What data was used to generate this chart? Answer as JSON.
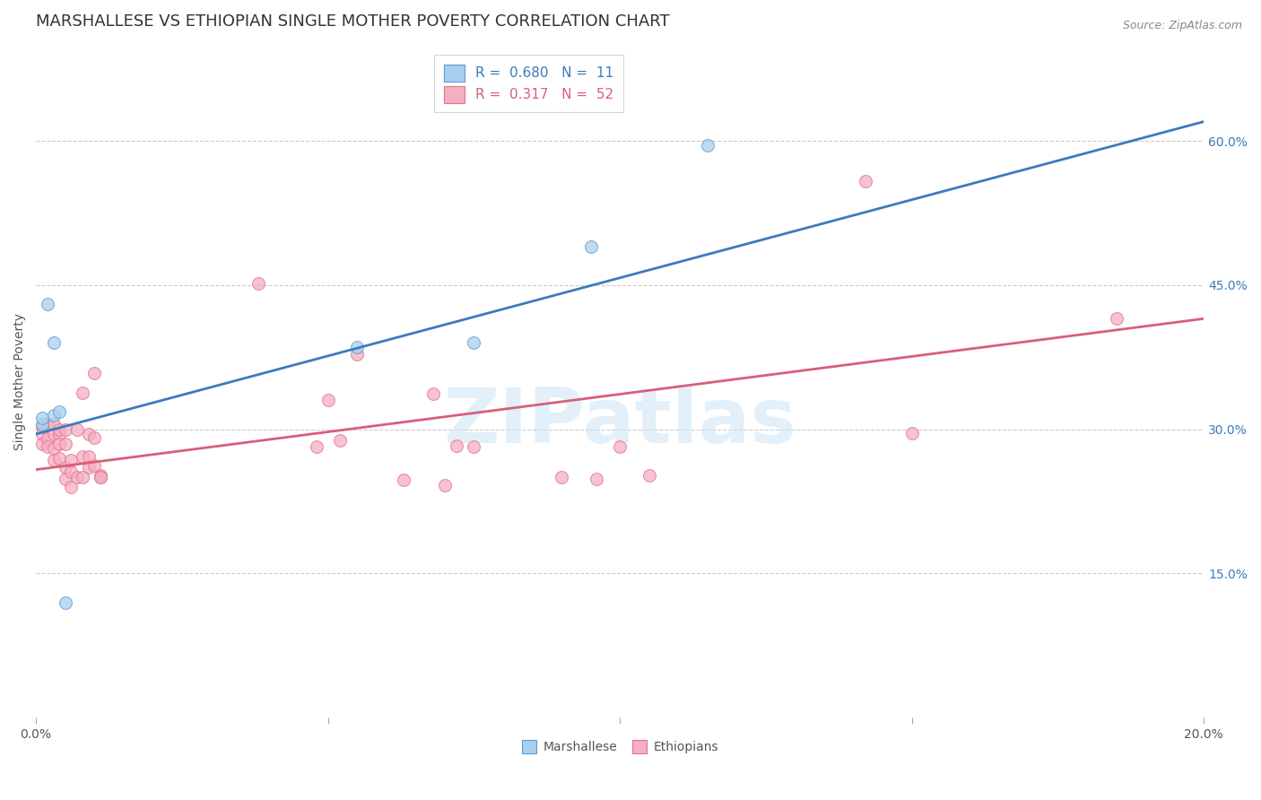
{
  "title": "MARSHALLESE VS ETHIOPIAN SINGLE MOTHER POVERTY CORRELATION CHART",
  "source": "Source: ZipAtlas.com",
  "ylabel": "Single Mother Poverty",
  "right_yticks": [
    "60.0%",
    "45.0%",
    "30.0%",
    "15.0%"
  ],
  "right_ytick_vals": [
    0.6,
    0.45,
    0.3,
    0.15
  ],
  "legend_blue_r": "0.680",
  "legend_blue_n": "11",
  "legend_pink_r": "0.317",
  "legend_pink_n": "52",
  "watermark": "ZIPatlas",
  "blue_color": "#a8d0ee",
  "pink_color": "#f4afc3",
  "blue_edge_color": "#5b9bd5",
  "pink_edge_color": "#e8728a",
  "blue_line_color": "#3c7abf",
  "pink_line_color": "#d95f79",
  "blue_scatter": [
    [
      0.001,
      0.305
    ],
    [
      0.001,
      0.312
    ],
    [
      0.002,
      0.43
    ],
    [
      0.003,
      0.39
    ],
    [
      0.003,
      0.315
    ],
    [
      0.004,
      0.318
    ],
    [
      0.005,
      0.12
    ],
    [
      0.055,
      0.385
    ],
    [
      0.075,
      0.39
    ],
    [
      0.095,
      0.49
    ],
    [
      0.115,
      0.595
    ]
  ],
  "pink_scatter": [
    [
      0.001,
      0.302
    ],
    [
      0.001,
      0.295
    ],
    [
      0.001,
      0.285
    ],
    [
      0.002,
      0.305
    ],
    [
      0.002,
      0.29
    ],
    [
      0.002,
      0.282
    ],
    [
      0.003,
      0.305
    ],
    [
      0.003,
      0.295
    ],
    [
      0.003,
      0.28
    ],
    [
      0.003,
      0.268
    ],
    [
      0.004,
      0.295
    ],
    [
      0.004,
      0.285
    ],
    [
      0.004,
      0.3
    ],
    [
      0.004,
      0.27
    ],
    [
      0.005,
      0.3
    ],
    [
      0.005,
      0.285
    ],
    [
      0.005,
      0.26
    ],
    [
      0.005,
      0.248
    ],
    [
      0.006,
      0.24
    ],
    [
      0.006,
      0.256
    ],
    [
      0.006,
      0.268
    ],
    [
      0.007,
      0.3
    ],
    [
      0.007,
      0.25
    ],
    [
      0.008,
      0.338
    ],
    [
      0.008,
      0.272
    ],
    [
      0.008,
      0.25
    ],
    [
      0.009,
      0.295
    ],
    [
      0.009,
      0.272
    ],
    [
      0.009,
      0.26
    ],
    [
      0.01,
      0.291
    ],
    [
      0.01,
      0.358
    ],
    [
      0.01,
      0.262
    ],
    [
      0.011,
      0.252
    ],
    [
      0.011,
      0.25
    ],
    [
      0.011,
      0.25
    ],
    [
      0.038,
      0.452
    ],
    [
      0.048,
      0.282
    ],
    [
      0.05,
      0.33
    ],
    [
      0.052,
      0.288
    ],
    [
      0.055,
      0.378
    ],
    [
      0.063,
      0.247
    ],
    [
      0.068,
      0.337
    ],
    [
      0.07,
      0.242
    ],
    [
      0.072,
      0.283
    ],
    [
      0.075,
      0.282
    ],
    [
      0.09,
      0.25
    ],
    [
      0.096,
      0.248
    ],
    [
      0.1,
      0.282
    ],
    [
      0.105,
      0.252
    ],
    [
      0.142,
      0.558
    ],
    [
      0.15,
      0.296
    ],
    [
      0.185,
      0.415
    ]
  ],
  "xlim": [
    0.0,
    0.2
  ],
  "ylim": [
    0.0,
    0.7
  ],
  "blue_line_x": [
    0.0,
    0.2
  ],
  "blue_line_y": [
    0.295,
    0.62
  ],
  "pink_line_x": [
    0.0,
    0.2
  ],
  "pink_line_y": [
    0.258,
    0.415
  ],
  "background_color": "#ffffff",
  "grid_color": "#cccccc",
  "title_fontsize": 13,
  "axis_fontsize": 10,
  "scatter_size": 100,
  "scatter_alpha": 0.75
}
